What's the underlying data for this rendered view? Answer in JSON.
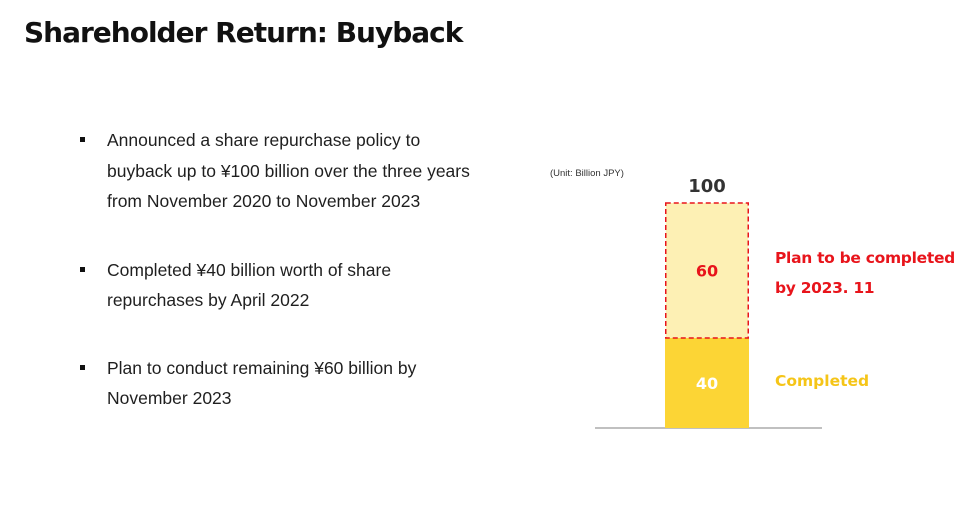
{
  "title": "Shareholder Return: Buyback",
  "bullets": [
    {
      "lines": [
        "Announced a share repurchase policy to",
        "buyback up to ¥100 billion over the three years",
        "from November 2020 to November 2023"
      ]
    },
    {
      "lines": [
        "Completed ¥40 billion worth of share",
        "repurchases by April 2022"
      ]
    },
    {
      "lines": [
        "Plan to conduct remaining ¥60 billion by",
        "November 2023"
      ]
    }
  ],
  "chart_data": {
    "type": "bar",
    "stacked": true,
    "unit_label": "(Unit: Billion JPY)",
    "total_label": "100",
    "total": 100,
    "ylim": [
      0,
      100
    ],
    "series": [
      {
        "name": "Completed",
        "value": 40,
        "label": "40",
        "color": "#fcd535",
        "border": "none"
      },
      {
        "name": "Plan to be completed by 2023. 11",
        "value": 60,
        "label": "60",
        "color": "#fdf0b4",
        "border": "dashed",
        "border_color": "#e8141b"
      }
    ],
    "legend": {
      "planned_lines": [
        "Plan to be completed",
        "by 2023. 11"
      ],
      "completed": "Completed",
      "planned_color": "#e8141b",
      "completed_color": "#f5c518"
    },
    "label_colors": {
      "planned": "#e8141b",
      "completed": "#ffffff",
      "total": "#333333"
    }
  }
}
